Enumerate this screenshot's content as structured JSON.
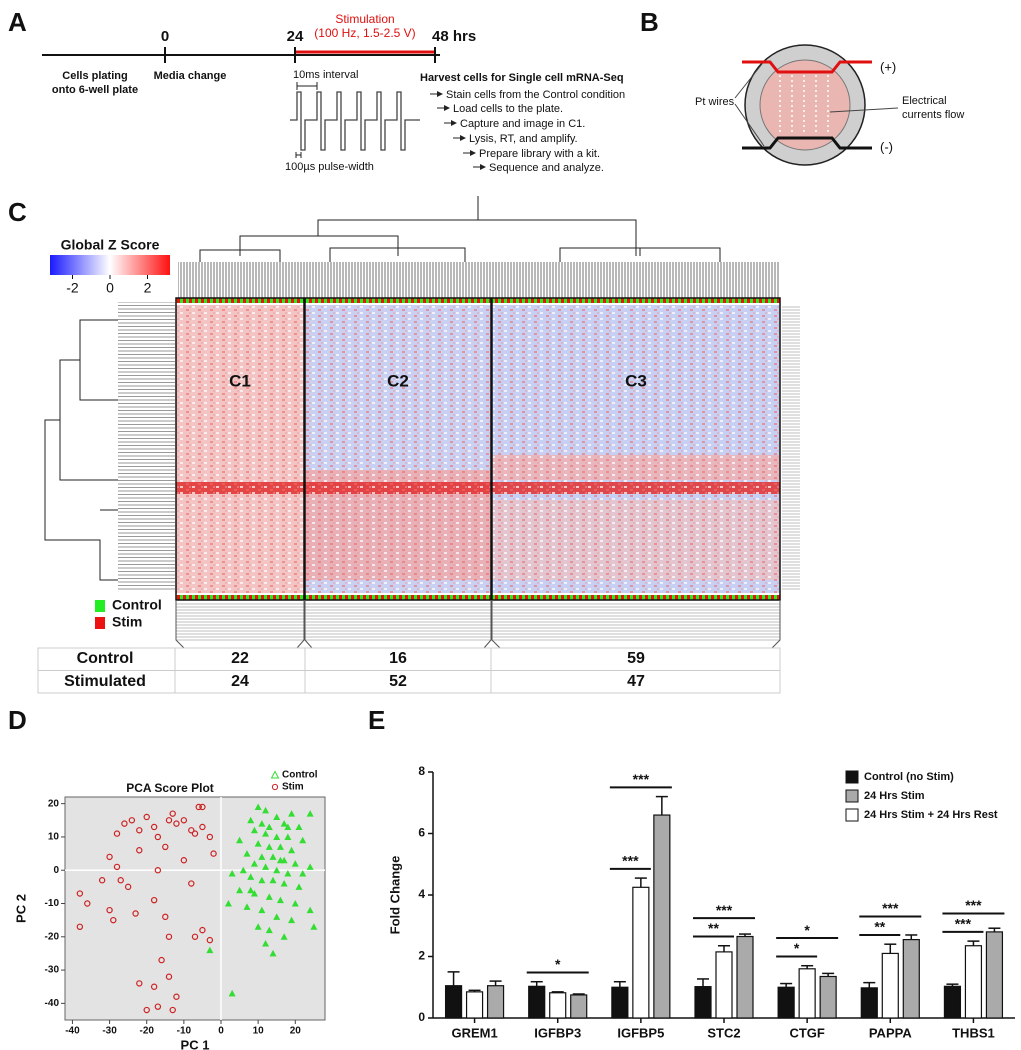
{
  "panel_labels": [
    "A",
    "B",
    "C",
    "D",
    "E"
  ],
  "timeline": {
    "ticks": [
      "0",
      "24",
      "48 hrs"
    ],
    "stim_title": "Stimulation",
    "stim_params": "(100 Hz, 1.5-2.5 V)",
    "plating": [
      "Cells plating",
      "onto 6-well plate"
    ],
    "media": "Media change",
    "interval": "10ms interval",
    "pulse": "100µs pulse-width",
    "harvest": "Harvest cells for Single cell mRNA-Seq",
    "steps": [
      "Stain cells from the Control condition",
      "Load cells to the plate.",
      "Capture and image in C1.",
      "Lysis, RT, and amplify.",
      "Prepare library with a kit.",
      "Sequence and analyze."
    ]
  },
  "electrode": {
    "plus": "(+)",
    "minus": "(-)",
    "wires": "Pt wires",
    "current": [
      "Electrical",
      "currents flow"
    ]
  },
  "heatmap": {
    "colorbar_title": "Global Z Score",
    "zlim": [
      -3.2,
      3.2
    ],
    "colorbar_ticks": [
      -2,
      0,
      2
    ],
    "clusters": [
      "C1",
      "C2",
      "C3"
    ],
    "legend": [
      {
        "name": "Control",
        "color": "#22ee22"
      },
      {
        "name": "Stim",
        "color": "#ee1111"
      }
    ]
  },
  "table": {
    "rows": [
      [
        "Control",
        22,
        16,
        59
      ],
      [
        "Stimulated",
        24,
        52,
        47
      ]
    ]
  },
  "chart_data": [
    {
      "type": "scatter",
      "title": "PCA Score Plot",
      "xlabel": "PC 1",
      "ylabel": "PC 2",
      "xlim": [
        -42,
        28
      ],
      "ylim": [
        -45,
        22
      ],
      "xticks": [
        -40,
        -30,
        -20,
        -10,
        0,
        10,
        20
      ],
      "yticks": [
        -40,
        -30,
        -20,
        -10,
        0,
        10,
        20
      ],
      "background": "#e3e3e3",
      "zero_lines": true,
      "series": [
        {
          "name": "Control",
          "color": "#33dd33",
          "marker": "triangle",
          "x": [
            10,
            12,
            15,
            19,
            24,
            8,
            11,
            13,
            17,
            21,
            9,
            12,
            15,
            18,
            22,
            5,
            10,
            13,
            16,
            19,
            7,
            11,
            14,
            17,
            20,
            24,
            9,
            12,
            15,
            18,
            22,
            3,
            8,
            11,
            14,
            17,
            21,
            5,
            9,
            13,
            16,
            20,
            24,
            2,
            7,
            11,
            15,
            19,
            10,
            13,
            17,
            12,
            14,
            25,
            -3,
            3,
            8,
            16,
            6,
            18
          ],
          "y": [
            19,
            18,
            16,
            17,
            17,
            15,
            14,
            13,
            14,
            13,
            12,
            11,
            10,
            10,
            9,
            9,
            8,
            7,
            7,
            6,
            5,
            4,
            4,
            3,
            2,
            1,
            2,
            1,
            0,
            -1,
            -1,
            -1,
            -2,
            -3,
            -3,
            -4,
            -5,
            -6,
            -7,
            -8,
            -9,
            -10,
            -12,
            -10,
            -11,
            -12,
            -14,
            -15,
            -17,
            -18,
            -20,
            -22,
            -25,
            -17,
            -24,
            -37,
            -6,
            3,
            0,
            13
          ]
        },
        {
          "name": "Stim",
          "color": "#cc2222",
          "marker": "circle",
          "x": [
            -6,
            -5,
            -13,
            -10,
            -12,
            -14,
            -8,
            -7,
            -20,
            -24,
            -22,
            -26,
            -28,
            -18,
            -17,
            -3,
            -5,
            -15,
            -22,
            -10,
            -28,
            -30,
            -17,
            -32,
            -27,
            -38,
            -36,
            -25,
            -18,
            -30,
            -23,
            -15,
            -38,
            -29,
            -14,
            -7,
            -16,
            -14,
            -18,
            -22,
            -12,
            -17,
            -13,
            -5,
            -3,
            -20,
            -8,
            -2
          ],
          "y": [
            19,
            19,
            17,
            15,
            14,
            15,
            12,
            11,
            16,
            15,
            12,
            14,
            11,
            13,
            10,
            10,
            13,
            7,
            6,
            3,
            1,
            4,
            0,
            -3,
            -3,
            -7,
            -10,
            -5,
            -9,
            -12,
            -13,
            -14,
            -17,
            -15,
            -20,
            -20,
            -27,
            -32,
            -35,
            -34,
            -38,
            -41,
            -42,
            -18,
            -21,
            -42,
            -4,
            5
          ]
        }
      ]
    },
    {
      "type": "bar",
      "ylabel": "Fold Change",
      "categories": [
        "GREM1",
        "IGFBP3",
        "IGFBP5",
        "STC2",
        "CTGF",
        "PAPPA",
        "THBS1"
      ],
      "ylim": [
        0,
        8
      ],
      "yticks": [
        0,
        2,
        4,
        6,
        8
      ],
      "legend": "upper right",
      "series": [
        {
          "name": "Control (no Stim)",
          "color": "#111111",
          "values": [
            1.05,
            1.03,
            1.0,
            1.02,
            1.0,
            0.98,
            1.03
          ],
          "errors": [
            0.45,
            0.15,
            0.18,
            0.25,
            0.12,
            0.17,
            0.07
          ]
        },
        {
          "name": "24 Hrs Stim",
          "color": "#aaaaaa",
          "values": [
            1.05,
            0.75,
            6.6,
            2.65,
            1.35,
            2.55,
            2.8
          ],
          "errors": [
            0.15,
            0.03,
            0.6,
            0.08,
            0.1,
            0.15,
            0.12
          ]
        },
        {
          "name": "24 Hrs Stim + 24 Hrs Rest",
          "color": "#ffffff",
          "values": [
            0.85,
            0.82,
            4.25,
            2.15,
            1.6,
            2.1,
            2.35
          ],
          "errors": [
            0.05,
            0.03,
            0.3,
            0.2,
            0.1,
            0.3,
            0.15
          ]
        }
      ],
      "significance": [
        {
          "category": "IGFBP3",
          "compare": "24 Hrs Stim",
          "label": "*"
        },
        {
          "category": "IGFBP5",
          "compare": "24 Hrs Stim + 24 Hrs Rest",
          "label": "***"
        },
        {
          "category": "IGFBP5",
          "compare": "24 Hrs Stim",
          "label": "***"
        },
        {
          "category": "STC2",
          "compare": "24 Hrs Stim + 24 Hrs Rest",
          "label": "**"
        },
        {
          "category": "STC2",
          "compare": "24 Hrs Stim",
          "label": "***"
        },
        {
          "category": "CTGF",
          "compare": "24 Hrs Stim + 24 Hrs Rest",
          "label": "*"
        },
        {
          "category": "CTGF",
          "compare": "24 Hrs Stim",
          "label": "*"
        },
        {
          "category": "PAPPA",
          "compare": "24 Hrs Stim + 24 Hrs Rest",
          "label": "**"
        },
        {
          "category": "PAPPA",
          "compare": "24 Hrs Stim",
          "label": "***"
        },
        {
          "category": "THBS1",
          "compare": "24 Hrs Stim + 24 Hrs Rest",
          "label": "***"
        },
        {
          "category": "THBS1",
          "compare": "24 Hrs Stim",
          "label": "***"
        }
      ]
    }
  ]
}
